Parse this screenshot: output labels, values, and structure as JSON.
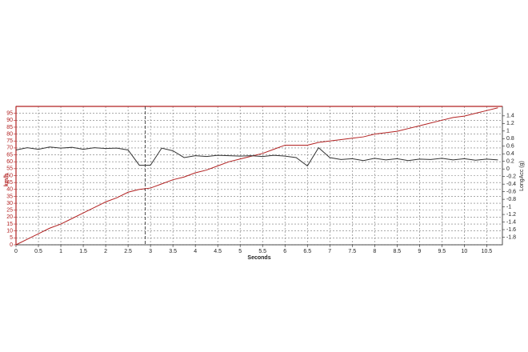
{
  "chart_data": {
    "type": "line",
    "x_label": "Seconds",
    "y_label": "km/h",
    "y2_label": "LongAcc (g)",
    "x": [
      0,
      0.25,
      0.5,
      0.75,
      1,
      1.25,
      1.5,
      1.75,
      2,
      2.25,
      2.5,
      2.75,
      3,
      3.25,
      3.5,
      3.75,
      4,
      4.25,
      4.5,
      4.75,
      5,
      5.25,
      5.5,
      5.75,
      6,
      6.25,
      6.5,
      6.75,
      7,
      7.25,
      7.5,
      7.75,
      8,
      8.25,
      8.5,
      8.75,
      9,
      9.25,
      9.5,
      9.75,
      10,
      10.25,
      10.5,
      10.75
    ],
    "series": [
      {
        "name": "km/h",
        "color": "#b22222",
        "values": [
          0,
          4,
          8,
          12,
          15,
          19,
          23,
          27,
          31,
          34,
          38,
          40,
          41,
          44,
          47,
          49,
          52,
          54,
          57,
          60,
          62,
          64,
          66,
          69,
          72,
          72,
          72,
          74,
          75,
          76,
          77,
          78,
          80,
          81,
          82,
          84,
          86,
          88,
          90,
          92,
          93,
          95,
          97,
          99
        ]
      },
      {
        "name": "LongAcc (g)",
        "color": "#333333",
        "axis": "y2",
        "values": [
          0.5,
          0.56,
          0.52,
          0.58,
          0.55,
          0.57,
          0.52,
          0.56,
          0.54,
          0.55,
          0.5,
          0.1,
          0.1,
          0.55,
          0.48,
          0.3,
          0.35,
          0.33,
          0.36,
          0.35,
          0.34,
          0.35,
          0.33,
          0.36,
          0.34,
          0.3,
          0.08,
          0.56,
          0.3,
          0.25,
          0.27,
          0.22,
          0.28,
          0.24,
          0.27,
          0.22,
          0.26,
          0.25,
          0.28,
          0.24,
          0.27,
          0.23,
          0.26,
          0.24
        ]
      }
    ],
    "marker_x": 2.88,
    "xlim": [
      0,
      10.85
    ],
    "xticks": [
      0,
      0.5,
      1,
      1.5,
      2,
      2.5,
      3,
      3.5,
      4,
      4.5,
      5,
      5.5,
      6,
      6.5,
      7,
      7.5,
      8,
      8.5,
      9,
      9.5,
      10,
      10.5
    ],
    "ylim": [
      0,
      100
    ],
    "yticks": [
      0,
      5,
      10,
      15,
      20,
      25,
      30,
      35,
      40,
      45,
      50,
      55,
      60,
      65,
      70,
      75,
      80,
      85,
      90,
      95
    ],
    "y2lim": [
      -2,
      1.65
    ],
    "y2ticks": [
      1.4,
      1.2,
      1,
      0.8,
      0.6,
      0.4,
      0.2,
      0,
      -0.2,
      -0.4,
      -0.6,
      -0.8,
      -1,
      -1.2,
      -1.4,
      -1.6,
      -1.8
    ],
    "grid": true
  }
}
